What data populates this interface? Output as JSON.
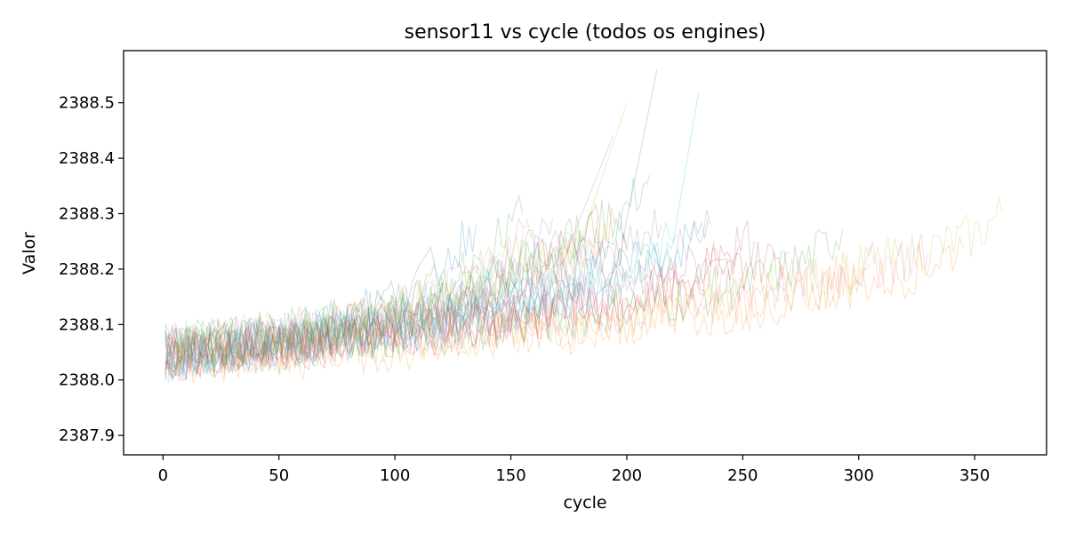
{
  "chart_data": {
    "type": "line",
    "title": "sensor11 vs cycle (todos os engines)",
    "xlabel": "cycle",
    "ylabel": "Valor",
    "xlim": [
      -17,
      381
    ],
    "ylim": [
      2387.865,
      2388.594
    ],
    "x_ticks": [
      0,
      50,
      100,
      150,
      200,
      250,
      300,
      350
    ],
    "x_tick_labels": [
      "0",
      "50",
      "100",
      "150",
      "200",
      "250",
      "300",
      "350"
    ],
    "y_ticks": [
      2387.9,
      2388.0,
      2388.1,
      2388.2,
      2388.3,
      2388.4,
      2388.5
    ],
    "y_tick_labels": [
      "2387.9",
      "2388.0",
      "2388.1",
      "2388.2",
      "2388.3",
      "2388.4",
      "2388.5"
    ],
    "grid": false,
    "legend": "none",
    "line_opacity": 0.25,
    "palette": [
      "#1f77b4",
      "#ff7f0e",
      "#2ca02c",
      "#d62728",
      "#9467bd",
      "#8c564b",
      "#e377c2",
      "#7f7f7f",
      "#bcbd22",
      "#17becf"
    ],
    "series": [
      {
        "color": "#1f77b4",
        "x": [
          1,
          20,
          40,
          60,
          80,
          100,
          120,
          140,
          160,
          180,
          200,
          213
        ],
        "y": [
          2388.03,
          2388.05,
          2388.07,
          2388.06,
          2388.08,
          2388.09,
          2388.12,
          2388.15,
          2388.18,
          2388.22,
          2388.29,
          2388.56
        ]
      },
      {
        "color": "#17becf",
        "x": [
          1,
          25,
          50,
          75,
          100,
          125,
          150,
          175,
          200,
          220,
          231
        ],
        "y": [
          2388.04,
          2388.06,
          2388.05,
          2388.08,
          2388.1,
          2388.12,
          2388.14,
          2388.17,
          2388.2,
          2388.25,
          2388.52
        ]
      },
      {
        "color": "#bcbd22",
        "x": [
          1,
          30,
          60,
          90,
          120,
          150,
          180,
          200
        ],
        "y": [
          2388.06,
          2388.07,
          2388.09,
          2388.11,
          2388.14,
          2388.19,
          2388.25,
          2388.5
        ]
      },
      {
        "color": "#9467bd",
        "x": [
          1,
          30,
          60,
          90,
          120,
          150,
          175,
          194
        ],
        "y": [
          2388.05,
          2388.06,
          2388.08,
          2388.1,
          2388.13,
          2388.18,
          2388.24,
          2388.44
        ]
      },
      {
        "color": "#2ca02c",
        "x": [
          1,
          20,
          40,
          60,
          80,
          100,
          120,
          140,
          160,
          180,
          200,
          210
        ],
        "y": [
          2388.07,
          2388.06,
          2388.08,
          2388.09,
          2388.1,
          2388.12,
          2388.15,
          2388.18,
          2388.22,
          2388.26,
          2388.31,
          2388.37
        ]
      },
      {
        "color": "#bcbd22",
        "x": [
          1,
          40,
          80,
          120,
          160,
          200,
          240,
          280,
          320,
          350,
          362
        ],
        "y": [
          2388.05,
          2388.06,
          2388.07,
          2388.08,
          2388.1,
          2388.12,
          2388.15,
          2388.18,
          2388.22,
          2388.26,
          2388.3
        ]
      },
      {
        "color": "#ff7f0e",
        "x": [
          1,
          40,
          80,
          120,
          160,
          200,
          240,
          280,
          320,
          345
        ],
        "y": [
          2388.04,
          2388.05,
          2388.07,
          2388.08,
          2388.09,
          2388.11,
          2388.14,
          2388.16,
          2388.19,
          2388.24
        ]
      },
      {
        "color": "#e377c2",
        "x": [
          1,
          50,
          100,
          150,
          200,
          250,
          300,
          330
        ],
        "y": [
          2388.06,
          2388.07,
          2388.09,
          2388.11,
          2388.13,
          2388.16,
          2388.2,
          2388.23
        ]
      },
      {
        "color": "#2ca02c",
        "x": [
          1,
          50,
          100,
          150,
          200,
          250,
          280,
          293
        ],
        "y": [
          2388.05,
          2388.06,
          2388.08,
          2388.1,
          2388.13,
          2388.17,
          2388.22,
          2388.27
        ]
      },
      {
        "color": "#d62728",
        "x": [
          1,
          40,
          80,
          120,
          160,
          200,
          240,
          270
        ],
        "y": [
          2388.04,
          2388.06,
          2388.08,
          2388.09,
          2388.12,
          2388.15,
          2388.19,
          2388.23
        ]
      },
      {
        "color": "#8c564b",
        "x": [
          1,
          30,
          60,
          90,
          120,
          150,
          180,
          210,
          240,
          255
        ],
        "y": [
          2388.05,
          2388.06,
          2388.07,
          2388.09,
          2388.1,
          2388.12,
          2388.15,
          2388.18,
          2388.22,
          2388.25
        ]
      },
      {
        "color": "#7f7f7f",
        "x": [
          1,
          30,
          60,
          90,
          120,
          150,
          180,
          200,
          215
        ],
        "y": [
          2388.06,
          2388.07,
          2388.08,
          2388.1,
          2388.12,
          2388.15,
          2388.19,
          2388.23,
          2388.28
        ]
      },
      {
        "color": "#1f77b4",
        "x": [
          1,
          30,
          60,
          90,
          120,
          150,
          180,
          200,
          225,
          235
        ],
        "y": [
          2388.04,
          2388.05,
          2388.07,
          2388.08,
          2388.11,
          2388.13,
          2388.17,
          2388.2,
          2388.24,
          2388.29
        ]
      },
      {
        "color": "#ff7f0e",
        "x": [
          1,
          25,
          50,
          75,
          100,
          125,
          150,
          175,
          195
        ],
        "y": [
          2388.03,
          2388.04,
          2388.06,
          2388.08,
          2388.1,
          2388.13,
          2388.17,
          2388.22,
          2388.28
        ]
      },
      {
        "color": "#d62728",
        "x": [
          1,
          25,
          50,
          75,
          100,
          125,
          150,
          170,
          188
        ],
        "y": [
          2388.05,
          2388.06,
          2388.07,
          2388.09,
          2388.11,
          2388.14,
          2388.18,
          2388.23,
          2388.29
        ]
      },
      {
        "color": "#9467bd",
        "x": [
          1,
          25,
          50,
          75,
          100,
          125,
          150,
          168
        ],
        "y": [
          2388.04,
          2388.05,
          2388.07,
          2388.08,
          2388.11,
          2388.15,
          2388.21,
          2388.29
        ]
      },
      {
        "color": "#e377c2",
        "x": [
          1,
          30,
          60,
          90,
          120,
          140,
          158
        ],
        "y": [
          2388.06,
          2388.07,
          2388.09,
          2388.11,
          2388.15,
          2388.2,
          2388.28
        ]
      },
      {
        "color": "#17becf",
        "x": [
          1,
          30,
          60,
          90,
          120,
          145,
          165,
          180
        ],
        "y": [
          2388.05,
          2388.06,
          2388.08,
          2388.1,
          2388.13,
          2388.16,
          2388.21,
          2388.27
        ]
      },
      {
        "color": "#2ca02c",
        "x": [
          1,
          20,
          40,
          60,
          80,
          100,
          120,
          140,
          155
        ],
        "y": [
          2388.07,
          2388.07,
          2388.08,
          2388.09,
          2388.11,
          2388.13,
          2388.17,
          2388.23,
          2388.3
        ]
      },
      {
        "color": "#8c564b",
        "x": [
          1,
          30,
          60,
          90,
          120,
          150,
          175,
          200
        ],
        "y": [
          2388.03,
          2388.05,
          2388.06,
          2388.08,
          2388.1,
          2388.13,
          2388.17,
          2388.24
        ]
      },
      {
        "color": "#bcbd22",
        "x": [
          1,
          25,
          50,
          75,
          100,
          125,
          145,
          160
        ],
        "y": [
          2388.06,
          2388.07,
          2388.08,
          2388.1,
          2388.12,
          2388.16,
          2388.21,
          2388.27
        ]
      },
      {
        "color": "#7f7f7f",
        "x": [
          1,
          30,
          60,
          90,
          120,
          150,
          178,
          190
        ],
        "y": [
          2388.04,
          2388.06,
          2388.07,
          2388.09,
          2388.11,
          2388.14,
          2388.19,
          2388.26
        ]
      },
      {
        "color": "#1f77b4",
        "x": [
          1,
          20,
          40,
          60,
          80,
          100,
          120,
          135
        ],
        "y": [
          2388.05,
          2388.06,
          2388.08,
          2388.09,
          2388.12,
          2388.15,
          2388.21,
          2388.28
        ]
      },
      {
        "color": "#d62728",
        "x": [
          1,
          40,
          80,
          120,
          160,
          200,
          230,
          248
        ],
        "y": [
          2388.04,
          2388.05,
          2388.07,
          2388.09,
          2388.11,
          2388.14,
          2388.18,
          2388.24
        ]
      },
      {
        "color": "#ff7f0e",
        "x": [
          1,
          50,
          100,
          150,
          200,
          250,
          280,
          305
        ],
        "y": [
          2388.03,
          2388.04,
          2388.06,
          2388.08,
          2388.1,
          2388.13,
          2388.16,
          2388.21
        ]
      },
      {
        "color": "#9467bd",
        "x": [
          1,
          40,
          80,
          120,
          160,
          200,
          220,
          236
        ],
        "y": [
          2388.05,
          2388.06,
          2388.08,
          2388.1,
          2388.13,
          2388.17,
          2388.22,
          2388.28
        ]
      },
      {
        "color": "#2ca02c",
        "x": [
          1,
          30,
          60,
          90,
          120,
          150,
          180
        ],
        "y": [
          2388.06,
          2388.07,
          2388.09,
          2388.11,
          2388.14,
          2388.19,
          2388.27
        ]
      },
      {
        "color": "#17becf",
        "x": [
          1,
          40,
          80,
          120,
          160,
          200,
          222
        ],
        "y": [
          2388.05,
          2388.06,
          2388.08,
          2388.1,
          2388.14,
          2388.19,
          2388.26
        ]
      }
    ]
  }
}
